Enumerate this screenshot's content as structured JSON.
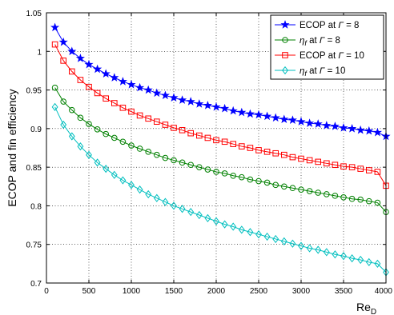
{
  "chart_data": {
    "type": "line",
    "title": "",
    "xlabel": "Re",
    "xlabel_sub": "D",
    "ylabel": "ECOP and fin efficiency",
    "xlim": [
      0,
      4000
    ],
    "ylim": [
      0.7,
      1.05
    ],
    "x_ticks": [
      0,
      500,
      1000,
      1500,
      2000,
      2500,
      3000,
      3500,
      4000
    ],
    "x_tick_labels": [
      "0",
      "500",
      "1000",
      "1500",
      "2000",
      "2500",
      "3000",
      "3500",
      "4000"
    ],
    "y_ticks": [
      0.7,
      0.75,
      0.8,
      0.85,
      0.9,
      0.95,
      1,
      1.05
    ],
    "y_tick_labels": [
      "0.7",
      "0.75",
      "0.8",
      "0.85",
      "0.9",
      "0.95",
      "1",
      "1.05"
    ],
    "grid": true,
    "grid_style": "dotted",
    "legend_position": "top-right",
    "x": [
      100,
      200,
      300,
      400,
      500,
      600,
      700,
      800,
      900,
      1000,
      1100,
      1200,
      1300,
      1400,
      1500,
      1600,
      1700,
      1800,
      1900,
      2000,
      2100,
      2200,
      2300,
      2400,
      2500,
      2600,
      2700,
      2800,
      2900,
      3000,
      3100,
      3200,
      3300,
      3400,
      3500,
      3600,
      3700,
      3800,
      3900,
      4000
    ],
    "series": [
      {
        "legend_pre": "ECOP  at ",
        "legend_sym": "Γ",
        "legend_post": " = 8",
        "legend_sub": "",
        "legend_sub_italic": false,
        "color": "#0000ff",
        "marker": "star",
        "values": [
          1.031,
          1.012,
          1.0,
          0.991,
          0.983,
          0.977,
          0.971,
          0.966,
          0.961,
          0.957,
          0.953,
          0.95,
          0.946,
          0.943,
          0.94,
          0.937,
          0.935,
          0.932,
          0.93,
          0.928,
          0.926,
          0.923,
          0.921,
          0.919,
          0.918,
          0.916,
          0.914,
          0.912,
          0.911,
          0.909,
          0.907,
          0.906,
          0.904,
          0.903,
          0.901,
          0.9,
          0.898,
          0.897,
          0.895,
          0.89
        ]
      },
      {
        "legend_pre": "",
        "legend_sym": "η",
        "legend_post": " at ",
        "legend_sym2": "Γ",
        "legend_post2": " = 8",
        "legend_sub": "f",
        "legend_sub_italic": true,
        "color": "#008000",
        "marker": "circle",
        "values": [
          0.953,
          0.935,
          0.924,
          0.914,
          0.906,
          0.899,
          0.893,
          0.888,
          0.883,
          0.878,
          0.874,
          0.87,
          0.866,
          0.862,
          0.859,
          0.856,
          0.853,
          0.85,
          0.847,
          0.844,
          0.842,
          0.839,
          0.837,
          0.834,
          0.832,
          0.83,
          0.827,
          0.825,
          0.823,
          0.821,
          0.819,
          0.817,
          0.815,
          0.813,
          0.811,
          0.809,
          0.808,
          0.806,
          0.804,
          0.792
        ]
      },
      {
        "legend_pre": "ECOP  at ",
        "legend_sym": "Γ",
        "legend_post": " = 10",
        "legend_sub": "",
        "legend_sub_italic": false,
        "color": "#ff0000",
        "marker": "square",
        "values": [
          1.009,
          0.988,
          0.974,
          0.963,
          0.954,
          0.946,
          0.939,
          0.933,
          0.927,
          0.922,
          0.917,
          0.913,
          0.909,
          0.905,
          0.901,
          0.898,
          0.894,
          0.891,
          0.888,
          0.885,
          0.883,
          0.88,
          0.877,
          0.875,
          0.872,
          0.87,
          0.868,
          0.866,
          0.863,
          0.861,
          0.859,
          0.857,
          0.855,
          0.853,
          0.851,
          0.85,
          0.848,
          0.846,
          0.844,
          0.826
        ]
      },
      {
        "legend_pre": "",
        "legend_sym": "η",
        "legend_post": " at ",
        "legend_sym2": "Γ",
        "legend_post2": " = 10",
        "legend_sub": "f",
        "legend_sub_italic": true,
        "color": "#00bfbf",
        "marker": "diamond",
        "values": [
          0.928,
          0.905,
          0.89,
          0.877,
          0.866,
          0.856,
          0.848,
          0.84,
          0.833,
          0.827,
          0.821,
          0.815,
          0.81,
          0.805,
          0.8,
          0.796,
          0.792,
          0.788,
          0.784,
          0.78,
          0.776,
          0.773,
          0.769,
          0.766,
          0.763,
          0.76,
          0.757,
          0.754,
          0.751,
          0.748,
          0.745,
          0.743,
          0.74,
          0.737,
          0.735,
          0.732,
          0.73,
          0.727,
          0.725,
          0.714
        ]
      }
    ]
  }
}
